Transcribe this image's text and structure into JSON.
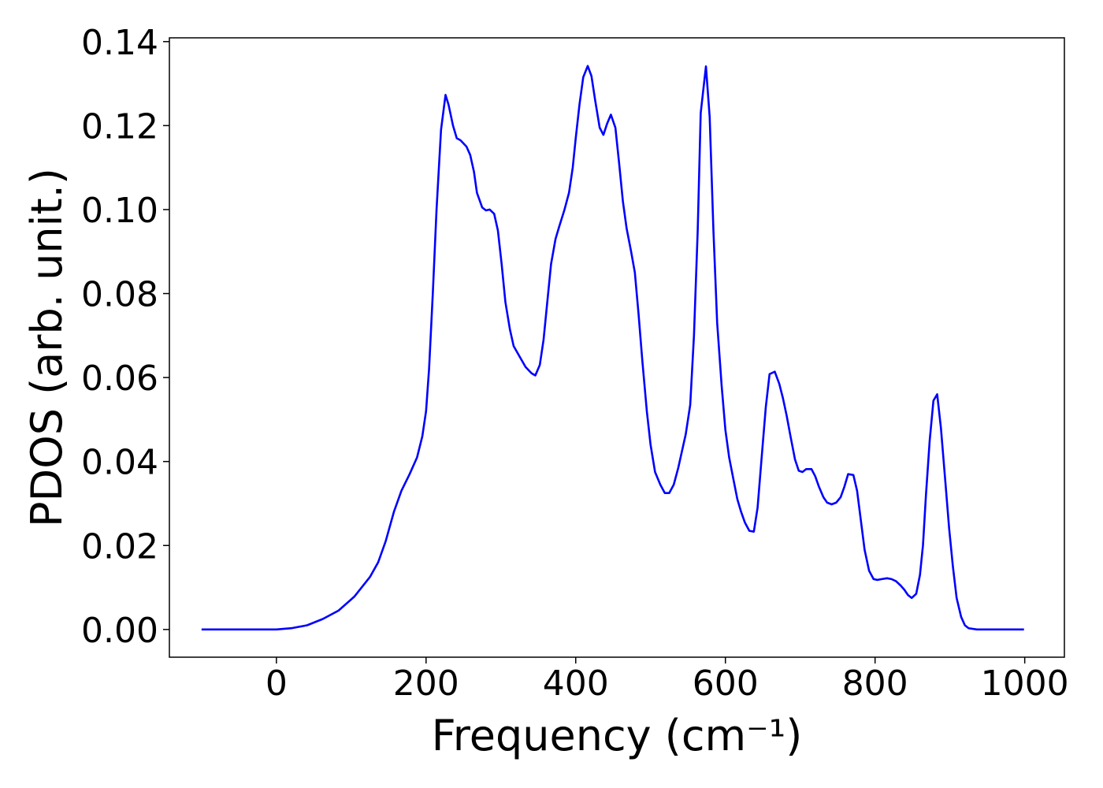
{
  "chart_data": {
    "type": "line",
    "xlabel": "Frequency (cm⁻¹)",
    "ylabel": "PDOS (arb. unit.)",
    "xlim": [
      -143,
      1053
    ],
    "ylim": [
      -0.0066,
      0.1409
    ],
    "xticks": [
      0,
      200,
      400,
      600,
      800,
      1000
    ],
    "yticks": [
      {
        "value": 0,
        "label": "0.00"
      },
      {
        "value": 0.02,
        "label": "0.02"
      },
      {
        "value": 0.04,
        "label": "0.04"
      },
      {
        "value": 0.06,
        "label": "0.06"
      },
      {
        "value": 0.08,
        "label": "0.08"
      },
      {
        "value": 0.1,
        "label": "0.10"
      },
      {
        "value": 0.12,
        "label": "0.12"
      },
      {
        "value": 0.14,
        "label": "0.14"
      }
    ],
    "grid": false,
    "x": [
      -100,
      -50,
      0,
      20,
      41,
      62,
      83,
      104,
      125,
      136,
      146,
      157,
      167,
      178,
      188,
      195,
      200,
      204,
      209,
      214,
      220,
      226,
      230,
      236,
      241,
      246,
      254,
      259,
      264,
      268,
      275,
      280,
      285,
      291,
      296,
      301,
      306,
      312,
      317,
      325,
      333,
      341,
      346,
      352,
      357,
      362,
      367,
      373,
      378,
      385,
      391,
      396,
      400,
      405,
      410,
      416,
      421,
      426,
      432,
      437,
      442,
      447,
      453,
      458,
      463,
      468,
      474,
      479,
      484,
      489,
      495,
      500,
      506,
      513,
      519,
      525,
      531,
      537,
      542,
      547,
      553,
      558,
      563,
      567,
      574,
      579,
      584,
      589,
      595,
      600,
      605,
      611,
      616,
      621,
      626,
      632,
      638,
      643,
      648,
      654,
      659,
      666,
      672,
      677,
      682,
      687,
      693,
      698,
      703,
      708,
      715,
      720,
      725,
      731,
      736,
      742,
      748,
      754,
      759,
      764,
      771,
      776,
      781,
      786,
      792,
      798,
      803,
      809,
      816,
      822,
      828,
      834,
      839,
      844,
      849,
      855,
      860,
      864,
      868,
      873,
      878,
      883,
      888,
      894,
      899,
      904,
      909,
      915,
      920,
      925,
      936,
      999
    ],
    "series": [
      {
        "color": "#0000ff",
        "values": [
          0,
          0,
          0,
          0.0003,
          0.001,
          0.0025,
          0.0045,
          0.0078,
          0.0125,
          0.016,
          0.021,
          0.028,
          0.033,
          0.037,
          0.041,
          0.046,
          0.052,
          0.062,
          0.08,
          0.1,
          0.119,
          0.1273,
          0.125,
          0.12,
          0.117,
          0.1165,
          0.115,
          0.113,
          0.109,
          0.104,
          0.1005,
          0.0998,
          0.1,
          0.099,
          0.095,
          0.087,
          0.078,
          0.0715,
          0.0675,
          0.065,
          0.0625,
          0.061,
          0.0605,
          0.063,
          0.069,
          0.078,
          0.087,
          0.093,
          0.096,
          0.1,
          0.104,
          0.11,
          0.117,
          0.125,
          0.1315,
          0.1342,
          0.1318,
          0.126,
          0.1195,
          0.1178,
          0.1205,
          0.1226,
          0.1195,
          0.111,
          0.102,
          0.0955,
          0.09,
          0.085,
          0.075,
          0.064,
          0.052,
          0.044,
          0.0375,
          0.0345,
          0.0325,
          0.0325,
          0.0345,
          0.0385,
          0.0425,
          0.0465,
          0.0535,
          0.07,
          0.095,
          0.123,
          0.1341,
          0.122,
          0.095,
          0.073,
          0.058,
          0.0475,
          0.041,
          0.0355,
          0.031,
          0.028,
          0.0255,
          0.0235,
          0.0233,
          0.029,
          0.04,
          0.053,
          0.0608,
          0.0614,
          0.0585,
          0.055,
          0.0508,
          0.046,
          0.0405,
          0.0378,
          0.0375,
          0.0382,
          0.0382,
          0.0365,
          0.034,
          0.0315,
          0.0302,
          0.0298,
          0.0302,
          0.0315,
          0.034,
          0.037,
          0.0368,
          0.033,
          0.026,
          0.019,
          0.014,
          0.012,
          0.0118,
          0.012,
          0.0122,
          0.012,
          0.0115,
          0.0105,
          0.0095,
          0.0082,
          0.0075,
          0.0085,
          0.013,
          0.02,
          0.032,
          0.045,
          0.0545,
          0.056,
          0.048,
          0.035,
          0.024,
          0.015,
          0.0075,
          0.003,
          0.001,
          0.0003,
          0,
          0
        ]
      }
    ]
  }
}
